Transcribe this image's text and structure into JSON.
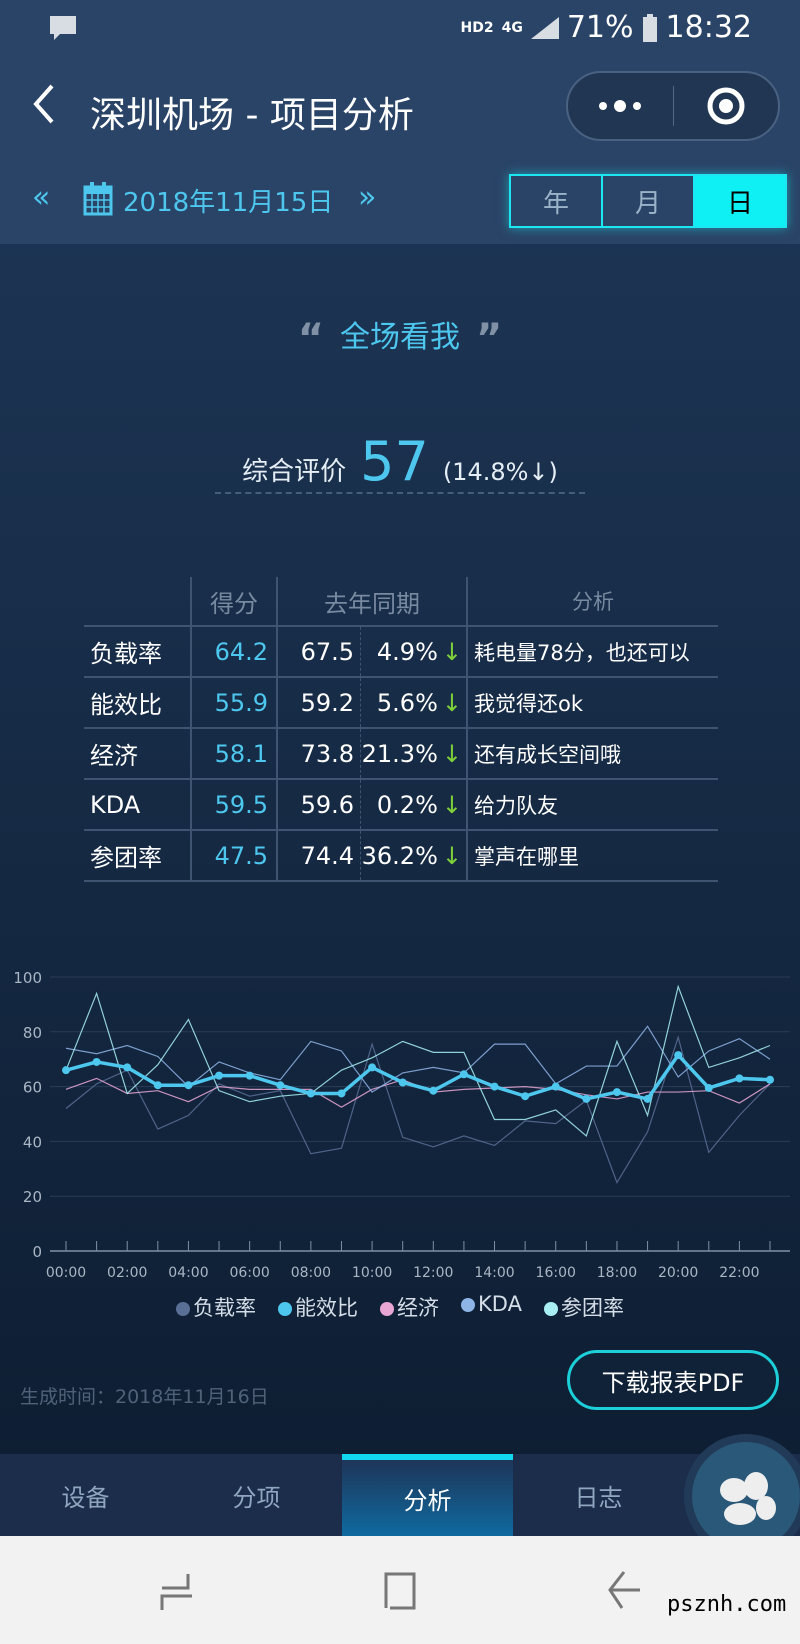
{
  "status_bar": {
    "network": "HD2",
    "signal": "4G",
    "battery": "71%",
    "time": "18:32"
  },
  "header": {
    "title": "深圳机场 - 项目分析",
    "back_icon": "chevron-left-icon",
    "more_icon": "more-dots-icon",
    "close_icon": "target-icon"
  },
  "date_nav": {
    "prev": "«",
    "next": "»",
    "date": "2018年11月15日",
    "periods": [
      "年",
      "月",
      "日"
    ],
    "selected_period": "日"
  },
  "quote": {
    "open": "“",
    "title": "全场看我",
    "close": "”"
  },
  "summary": {
    "label": "综合评价",
    "score": "57",
    "change": "(14.8%",
    "arrow": "↓",
    "close": ")"
  },
  "table": {
    "headers": [
      "",
      "得分",
      "去年同期",
      "分析"
    ],
    "rows": [
      {
        "name": "负载率",
        "score": "64.2",
        "last": "67.5",
        "pct": "4.9%",
        "arrow": "↓",
        "note": "耗电量78分，也还可以"
      },
      {
        "name": "能效比",
        "score": "55.9",
        "last": "59.2",
        "pct": "5.6%",
        "arrow": "↓",
        "note": "我觉得还ok"
      },
      {
        "name": "经济",
        "score": "58.1",
        "last": "73.8",
        "pct": "21.3%",
        "arrow": "↓",
        "note": "还有成长空间哦"
      },
      {
        "name": "KDA",
        "score": "59.5",
        "last": "59.6",
        "pct": "0.2%",
        "arrow": "↓",
        "note": "给力队友"
      },
      {
        "name": "参团率",
        "score": "47.5",
        "last": "74.4",
        "pct": "36.2%",
        "arrow": "↓",
        "note": "掌声在哪里"
      }
    ]
  },
  "chart_data": {
    "type": "line",
    "x": [
      "00:00",
      "01:00",
      "02:00",
      "03:00",
      "04:00",
      "05:00",
      "06:00",
      "07:00",
      "08:00",
      "09:00",
      "10:00",
      "11:00",
      "12:00",
      "13:00",
      "14:00",
      "15:00",
      "16:00",
      "17:00",
      "18:00",
      "19:00",
      "20:00",
      "21:00",
      "22:00",
      "23:00"
    ],
    "xticklabels": [
      "00:00",
      "02:00",
      "04:00",
      "06:00",
      "08:00",
      "10:00",
      "12:00",
      "14:00",
      "16:00",
      "18:00",
      "20:00",
      "22:00"
    ],
    "yticks": [
      "0",
      "20",
      "40",
      "60",
      "80",
      "100"
    ],
    "ylim": [
      0,
      100
    ],
    "grid": true,
    "legend": "bottom",
    "series": [
      {
        "name": "负载率",
        "color": "#5a6f96",
        "values": [
          52,
          61,
          66,
          44.5,
          49.5,
          61,
          56.5,
          58.5,
          35.5,
          37.5,
          75.5,
          41.5,
          38,
          42,
          38.5,
          47.5,
          46.5,
          55,
          25,
          43.5,
          78,
          36,
          49.5,
          61
        ]
      },
      {
        "name": "能效比",
        "color": "#4ec7ee",
        "highlight": true,
        "values": [
          66,
          69,
          67,
          60.5,
          60.5,
          64,
          64,
          60.5,
          57.5,
          57.5,
          67,
          61.5,
          58.5,
          64.5,
          60,
          56.5,
          60,
          55.5,
          58,
          55.5,
          71.5,
          59.5,
          63,
          62.5
        ]
      },
      {
        "name": "经济",
        "color": "#e8a6d4",
        "values": [
          59,
          63,
          57.5,
          58.5,
          54.5,
          60,
          59,
          59,
          59,
          52.5,
          59,
          62.5,
          58,
          59,
          59.5,
          60,
          59,
          57,
          55.5,
          58,
          58,
          58.5,
          54,
          61
        ]
      },
      {
        "name": "KDA",
        "color": "#8fb4e6",
        "values": [
          74,
          72,
          75,
          71,
          60,
          69,
          65,
          62.5,
          76.5,
          73,
          58,
          65,
          67,
          65,
          75.5,
          75.5,
          61,
          67.5,
          67.5,
          82,
          63.5,
          73,
          77.5,
          70
        ]
      },
      {
        "name": "参团率",
        "color": "#a8eef2",
        "values": [
          66,
          94,
          57.5,
          68,
          84.5,
          58.5,
          54.5,
          56.5,
          57.5,
          66,
          70.5,
          76.5,
          72.5,
          72.5,
          48,
          48,
          51.5,
          42,
          76.5,
          49.5,
          96.5,
          67,
          70.5,
          75
        ]
      }
    ]
  },
  "footer": {
    "generated": "生成时间：2018年11月16日",
    "download": "下载报表PDF"
  },
  "tabs": [
    "设备",
    "分项",
    "分析",
    "日志"
  ],
  "active_tab": "分析",
  "watermark": "psznh.com"
}
